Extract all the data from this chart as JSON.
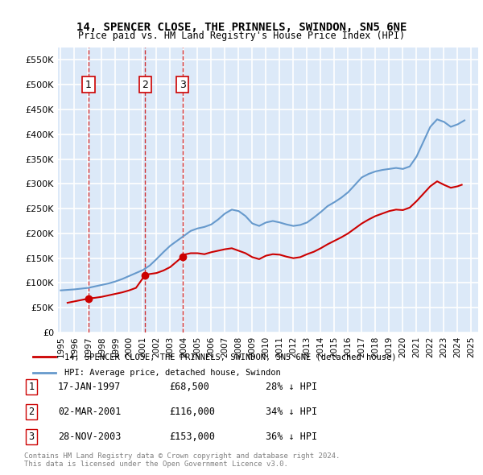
{
  "title": "14, SPENCER CLOSE, THE PRINNELS, SWINDON, SN5 6NE",
  "subtitle": "Price paid vs. HM Land Registry's House Price Index (HPI)",
  "legend_label_red": "14, SPENCER CLOSE, THE PRINNELS, SWINDON, SN5 6NE (detached house)",
  "legend_label_blue": "HPI: Average price, detached house, Swindon",
  "footnote": "Contains HM Land Registry data © Crown copyright and database right 2024.\nThis data is licensed under the Open Government Licence v3.0.",
  "transactions": [
    {
      "num": 1,
      "date": "17-JAN-1997",
      "price": 68500,
      "pct": "28%",
      "x": 1997.04
    },
    {
      "num": 2,
      "date": "02-MAR-2001",
      "price": 116000,
      "pct": "34%",
      "x": 2001.17
    },
    {
      "num": 3,
      "date": "28-NOV-2003",
      "price": 153000,
      "pct": "36%",
      "x": 2003.9
    }
  ],
  "hpi_x": [
    1995,
    1995.5,
    1996,
    1996.5,
    1997,
    1997.5,
    1998,
    1998.5,
    1999,
    1999.5,
    2000,
    2000.5,
    2001,
    2001.5,
    2002,
    2002.5,
    2003,
    2003.5,
    2004,
    2004.5,
    2005,
    2005.5,
    2006,
    2006.5,
    2007,
    2007.5,
    2008,
    2008.5,
    2009,
    2009.5,
    2010,
    2010.5,
    2011,
    2011.5,
    2012,
    2012.5,
    2013,
    2013.5,
    2014,
    2014.5,
    2015,
    2015.5,
    2016,
    2016.5,
    2017,
    2017.5,
    2018,
    2018.5,
    2019,
    2019.5,
    2020,
    2020.5,
    2021,
    2021.5,
    2022,
    2022.5,
    2023,
    2023.5,
    2024,
    2024.5
  ],
  "hpi_y": [
    85000,
    86000,
    87000,
    88500,
    90000,
    93000,
    96000,
    99000,
    103000,
    108000,
    114000,
    120000,
    126000,
    135000,
    148000,
    162000,
    175000,
    185000,
    195000,
    205000,
    210000,
    213000,
    218000,
    228000,
    240000,
    248000,
    245000,
    235000,
    220000,
    215000,
    222000,
    225000,
    222000,
    218000,
    215000,
    217000,
    222000,
    232000,
    243000,
    255000,
    263000,
    272000,
    283000,
    298000,
    313000,
    320000,
    325000,
    328000,
    330000,
    332000,
    330000,
    335000,
    355000,
    385000,
    415000,
    430000,
    425000,
    415000,
    420000,
    428000
  ],
  "price_paid_x": [
    1995.5,
    1997.04,
    1997.5,
    1998,
    1998.5,
    1999,
    1999.5,
    2000,
    2000.5,
    2001.17,
    2001.5,
    2002,
    2002.5,
    2003,
    2003.9,
    2004,
    2004.5,
    2005,
    2005.5,
    2006,
    2006.5,
    2007,
    2007.5,
    2008,
    2008.5,
    2009,
    2009.5,
    2010,
    2010.5,
    2011,
    2011.5,
    2012,
    2012.5,
    2013,
    2013.5,
    2014,
    2014.5,
    2015,
    2015.5,
    2016,
    2016.5,
    2017,
    2017.5,
    2018,
    2018.5,
    2019,
    2019.5,
    2020,
    2020.5,
    2021,
    2021.5,
    2022,
    2022.5,
    2023,
    2023.5,
    2024,
    2024.3
  ],
  "price_paid_y": [
    60000,
    68500,
    70000,
    72000,
    75000,
    78000,
    81000,
    85000,
    90000,
    116000,
    118000,
    120000,
    125000,
    132000,
    153000,
    157000,
    160000,
    160000,
    158000,
    162000,
    165000,
    168000,
    170000,
    165000,
    160000,
    152000,
    148000,
    155000,
    158000,
    157000,
    153000,
    150000,
    152000,
    158000,
    163000,
    170000,
    178000,
    185000,
    192000,
    200000,
    210000,
    220000,
    228000,
    235000,
    240000,
    245000,
    248000,
    247000,
    252000,
    265000,
    280000,
    295000,
    305000,
    298000,
    292000,
    295000,
    298000
  ],
  "ylim": [
    0,
    575000
  ],
  "xlim": [
    1994.8,
    2025.5
  ],
  "yticks": [
    0,
    50000,
    100000,
    150000,
    200000,
    250000,
    300000,
    350000,
    400000,
    450000,
    500000,
    550000
  ],
  "xticks": [
    1995,
    1996,
    1997,
    1998,
    1999,
    2000,
    2001,
    2002,
    2003,
    2004,
    2005,
    2006,
    2007,
    2008,
    2009,
    2010,
    2011,
    2012,
    2013,
    2014,
    2015,
    2016,
    2017,
    2018,
    2019,
    2020,
    2021,
    2022,
    2023,
    2024,
    2025
  ],
  "bg_color": "#dce9f8",
  "grid_color": "#ffffff",
  "red_color": "#cc0000",
  "blue_color": "#6699cc"
}
